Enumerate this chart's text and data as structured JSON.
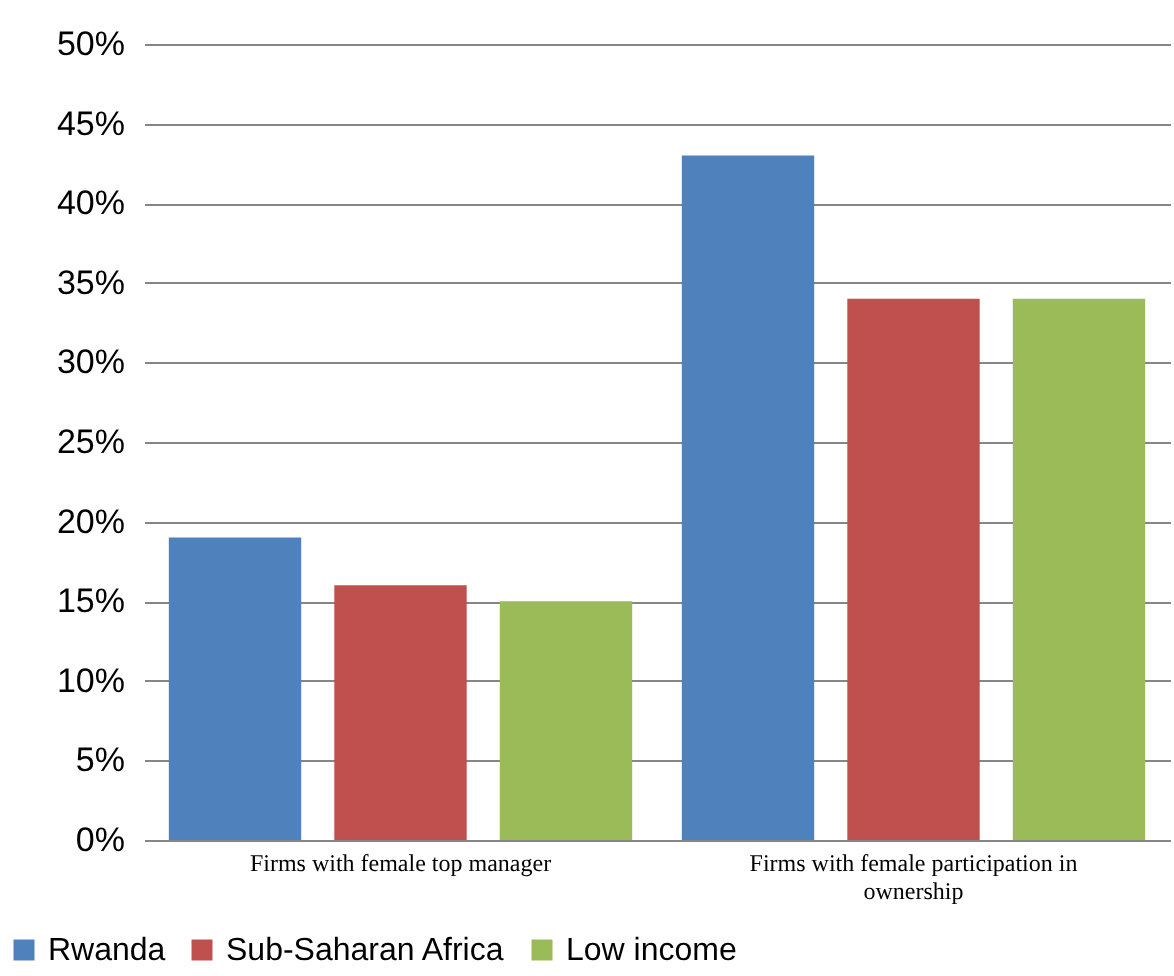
{
  "chart_data": {
    "type": "bar",
    "categories": [
      "Firms with female top manager",
      "Firms with female participation in ownership"
    ],
    "series": [
      {
        "name": "Rwanda",
        "color": "#4f81bd",
        "values": [
          19,
          43
        ]
      },
      {
        "name": "Sub-Saharan Africa",
        "color": "#c0504d",
        "values": [
          16,
          34
        ]
      },
      {
        "name": "Low income",
        "color": "#9bbb59",
        "values": [
          15,
          34
        ]
      }
    ],
    "ylim": [
      0,
      50
    ],
    "yticks": [
      {
        "value": 0,
        "label": "0%"
      },
      {
        "value": 5,
        "label": "5%"
      },
      {
        "value": 10,
        "label": "10%"
      },
      {
        "value": 15,
        "label": "15%"
      },
      {
        "value": 20,
        "label": "20%"
      },
      {
        "value": 25,
        "label": "25%"
      },
      {
        "value": 30,
        "label": "30%"
      },
      {
        "value": 35,
        "label": "35%"
      },
      {
        "value": 40,
        "label": "40%"
      },
      {
        "value": 45,
        "label": "45%"
      },
      {
        "value": 50,
        "label": "50%"
      }
    ],
    "grid": "y",
    "legend": "bottom"
  }
}
